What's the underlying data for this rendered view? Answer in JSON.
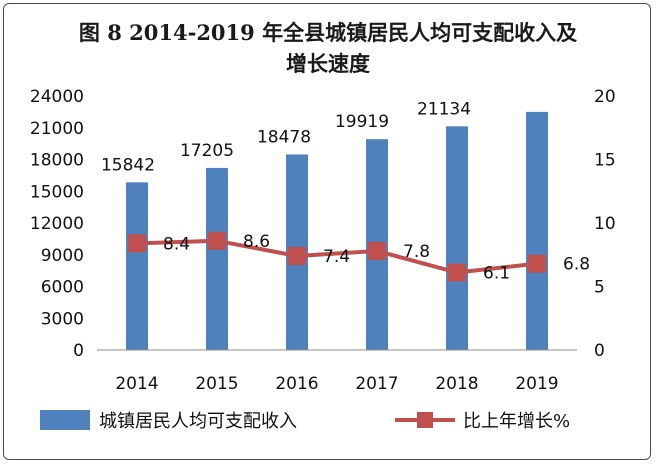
{
  "chart_data": {
    "type": "bar",
    "title": "图 8 2014-2019 年全县城镇居民人均可支配收入及增长速度",
    "title_lines": [
      "图 8 2014-2019 年全县城镇居民人均可支配收入及",
      "增长速度"
    ],
    "categories": [
      "2014",
      "2015",
      "2016",
      "2017",
      "2018",
      "2019"
    ],
    "series": [
      {
        "name": "城镇居民人均可支配收入",
        "type": "bar",
        "axis": "left",
        "color": "#4F81BD",
        "values": [
          15842,
          17205,
          18478,
          19919,
          21134,
          22500
        ],
        "labels": [
          "15842",
          "17205",
          "18478",
          "19919",
          "21134",
          ""
        ]
      },
      {
        "name": "比上年增长%",
        "type": "line",
        "axis": "right",
        "color": "#C0504D",
        "values": [
          8.4,
          8.6,
          7.4,
          7.8,
          6.1,
          6.8
        ],
        "labels": [
          "8.4",
          "8.6",
          "7.4",
          "7.8",
          "6.1",
          "6.8"
        ]
      }
    ],
    "y_left": {
      "min": 0,
      "max": 24000,
      "ticks": [
        "0",
        "3000",
        "6000",
        "9000",
        "12000",
        "15000",
        "18000",
        "21000",
        "24000"
      ]
    },
    "y_right": {
      "min": 0,
      "max": 20,
      "ticks": [
        "0",
        "5",
        "10",
        "15",
        "20"
      ]
    },
    "grid": false,
    "legend_position": "bottom"
  }
}
